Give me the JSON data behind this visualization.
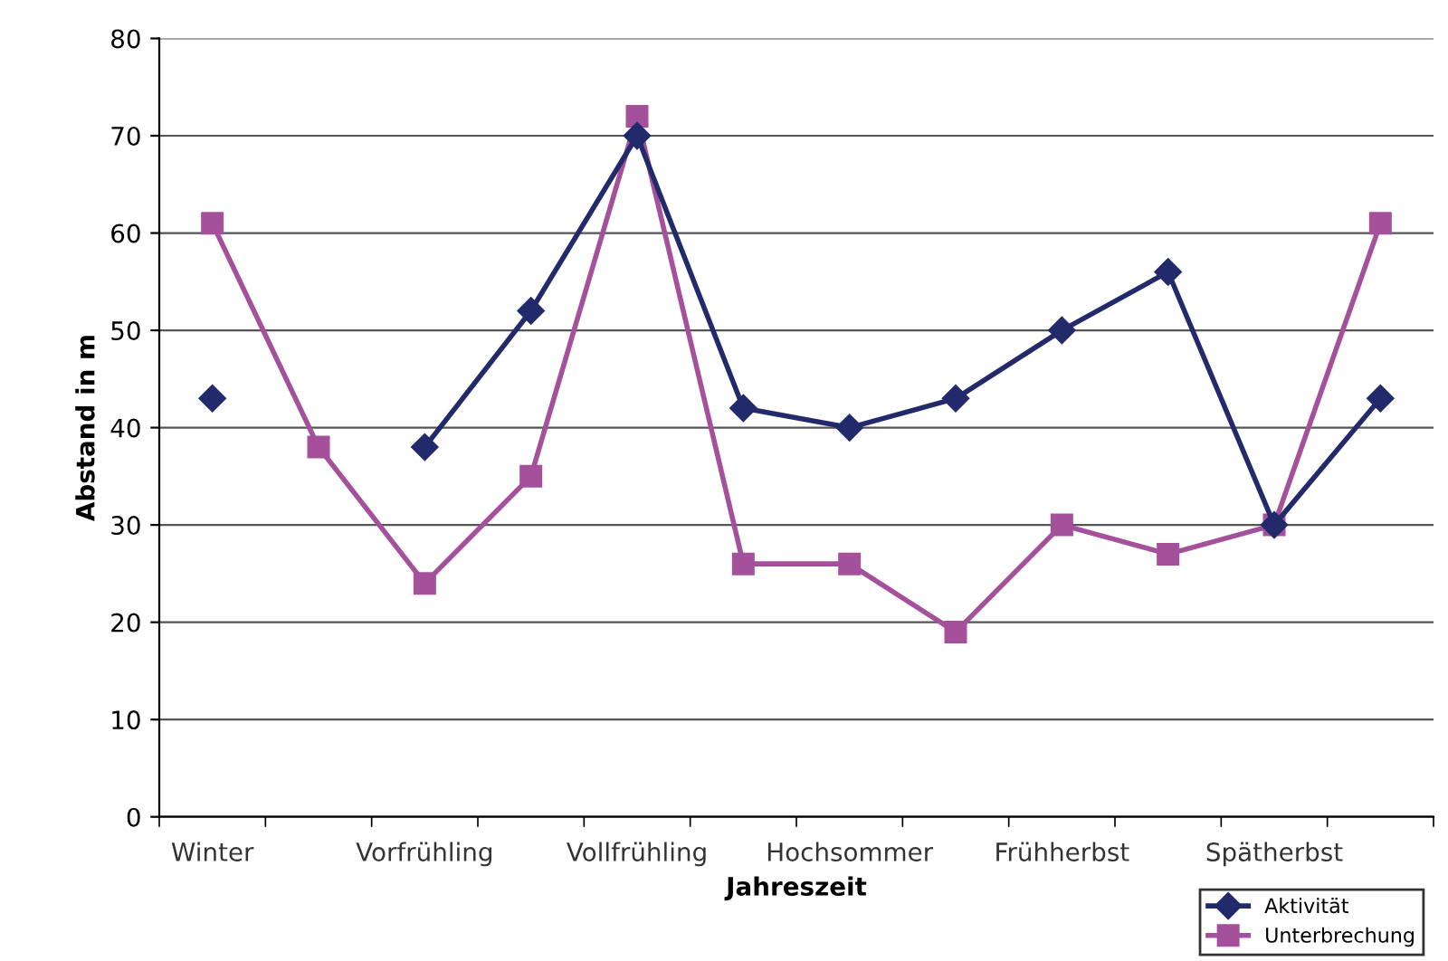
{
  "chart_data": {
    "type": "line",
    "xlabel": "Jahreszeit",
    "ylabel": "Abstand in m",
    "categories": [
      "Winter",
      null,
      "Vorfrühling",
      null,
      "Vollfrühling",
      null,
      "Hochsommer",
      null,
      "Frühherbst",
      null,
      "Spätherbst",
      null
    ],
    "series": [
      {
        "name": "Aktivität",
        "color": "#232a6b",
        "marker": "diamond",
        "values": [
          43,
          null,
          38,
          52,
          70,
          42,
          40,
          43,
          50,
          56,
          30,
          43
        ]
      },
      {
        "name": "Unterbrechung",
        "color": "#a5509a",
        "marker": "square",
        "values": [
          61,
          38,
          24,
          35,
          72,
          26,
          26,
          19,
          30,
          27,
          30,
          61
        ]
      }
    ],
    "ylim": [
      0,
      80
    ],
    "yticks": [
      0,
      10,
      20,
      30,
      40,
      50,
      60,
      70,
      80
    ],
    "grid": "y",
    "legend": "bottom right",
    "line_style": "solid"
  }
}
